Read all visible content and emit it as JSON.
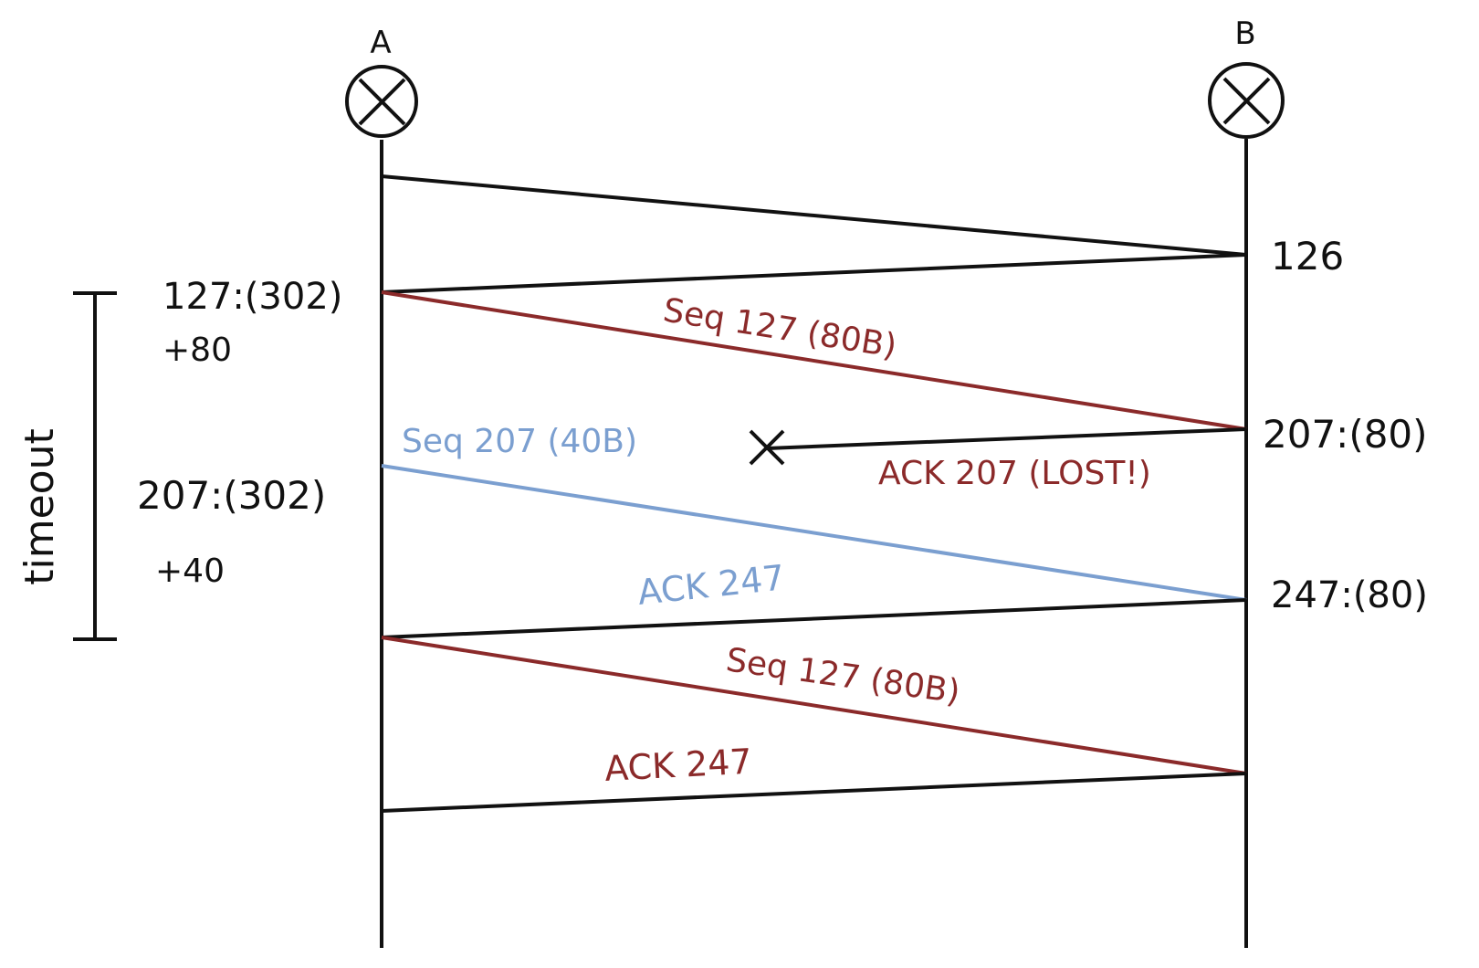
{
  "colors": {
    "black": "#111111",
    "red": "#8b2a2a",
    "blue": "#7b9fd0"
  },
  "hosts": {
    "a": "A",
    "b": "B"
  },
  "left_annotations": {
    "timeout": "timeout",
    "a1": "127:(302)",
    "a1_plus": "+80",
    "a2": "207:(302)",
    "a2_plus": "+40"
  },
  "right_annotations": {
    "b0": "126",
    "b1": "207:(80)",
    "b2": "247:(80)"
  },
  "messages": {
    "m1": "Seq 127 (80B)",
    "m2": "ACK 207 (LOST!)",
    "m3": "Seq 207 (40B)",
    "m4": "ACK 247",
    "m5": "Seq 127 (80B)",
    "m6": "ACK 247"
  },
  "lost_marker_icon": "x-icon",
  "host_icon": "circle-x-icon"
}
